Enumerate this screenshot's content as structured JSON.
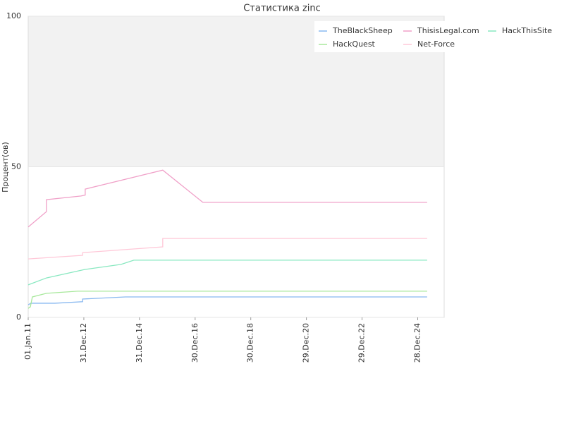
{
  "chart_data": {
    "type": "line",
    "title": "Статистика zinc",
    "ylabel": "Процент(ов)",
    "xlim": [
      "2011-01-01",
      "2025-12-10"
    ],
    "xticks": [
      {
        "value": "2011-01-01",
        "label": "01.Jan.11"
      },
      {
        "value": "2012-12-31",
        "label": "31.Dec.12"
      },
      {
        "value": "2014-12-31",
        "label": "31.Dec.14"
      },
      {
        "value": "2016-12-30",
        "label": "30.Dec.16"
      },
      {
        "value": "2018-12-30",
        "label": "30.Dec.18"
      },
      {
        "value": "2020-12-29",
        "label": "29.Dec.20"
      },
      {
        "value": "2022-12-29",
        "label": "29.Dec.22"
      },
      {
        "value": "2024-12-28",
        "label": "28.Dec.24"
      }
    ],
    "ylim": [
      0,
      100
    ],
    "yticks": [
      0,
      50,
      100
    ],
    "band": [
      50,
      100
    ],
    "band_color": "#f2f2f2",
    "legend": "upper right",
    "series": [
      {
        "name": "TheBlackSheep",
        "color": "#88b8f0",
        "x": [
          "2011-01-01",
          "2011-02-07",
          "2011-12-17",
          "2012-12-15",
          "2012-12-15",
          "2014-06-28",
          "2025-05-01"
        ],
        "values": [
          4.2,
          4.7,
          4.7,
          5.2,
          6.1,
          6.8,
          6.8
        ]
      },
      {
        "name": "ThisisLegal.com",
        "color": "#f0a0c8",
        "x": [
          "2011-01-01",
          "2011-08-28",
          "2011-08-28",
          "2012-11-24",
          "2013-01-18",
          "2013-01-18",
          "2015-11-01",
          "2017-04-10",
          "2025-05-01"
        ],
        "values": [
          30,
          35.1,
          39.1,
          40.3,
          40.6,
          42.6,
          48.9,
          38.2,
          38.2
        ]
      },
      {
        "name": "HackThisSite",
        "color": "#88e8c0",
        "x": [
          "2011-01-01",
          "2011-08-28",
          "2013-01-10",
          "2014-05-03",
          "2014-10-18",
          "2025-05-01"
        ],
        "values": [
          10.8,
          13.1,
          15.9,
          17.6,
          19.0,
          19.0
        ]
      },
      {
        "name": "HackQuest",
        "color": "#a8e89c",
        "x": [
          "2011-01-01",
          "2011-01-29",
          "2011-02-25",
          "2011-08-28",
          "2012-10-08",
          "2025-05-01"
        ],
        "values": [
          3,
          3.5,
          6.8,
          8,
          8.7,
          8.7
        ]
      },
      {
        "name": "Net-Force",
        "color": "#ffc8d8",
        "x": [
          "2011-01-01",
          "2012-12-15",
          "2012-12-15",
          "2015-11-01",
          "2015-11-01",
          "2025-05-01"
        ],
        "values": [
          19.4,
          20.6,
          21.5,
          23.4,
          26.2,
          26.2
        ]
      }
    ]
  }
}
